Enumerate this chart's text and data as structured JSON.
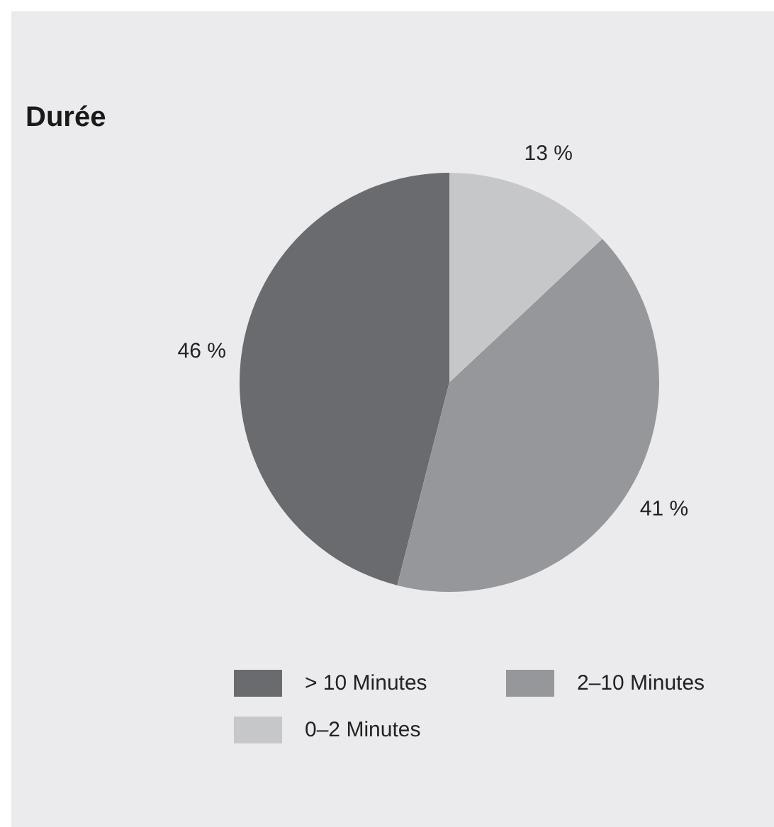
{
  "chart_data": {
    "type": "pie",
    "title": "Durée",
    "categories": [
      "> 10 Minutes",
      "2–10 Minutes",
      "0–2 Minutes"
    ],
    "values": [
      46,
      41,
      13
    ],
    "colors": [
      "#6a6b6f",
      "#96979a",
      "#c6c7c9"
    ],
    "value_labels": [
      "46 %",
      "41 %",
      "13 %"
    ],
    "legend": "bottom"
  }
}
